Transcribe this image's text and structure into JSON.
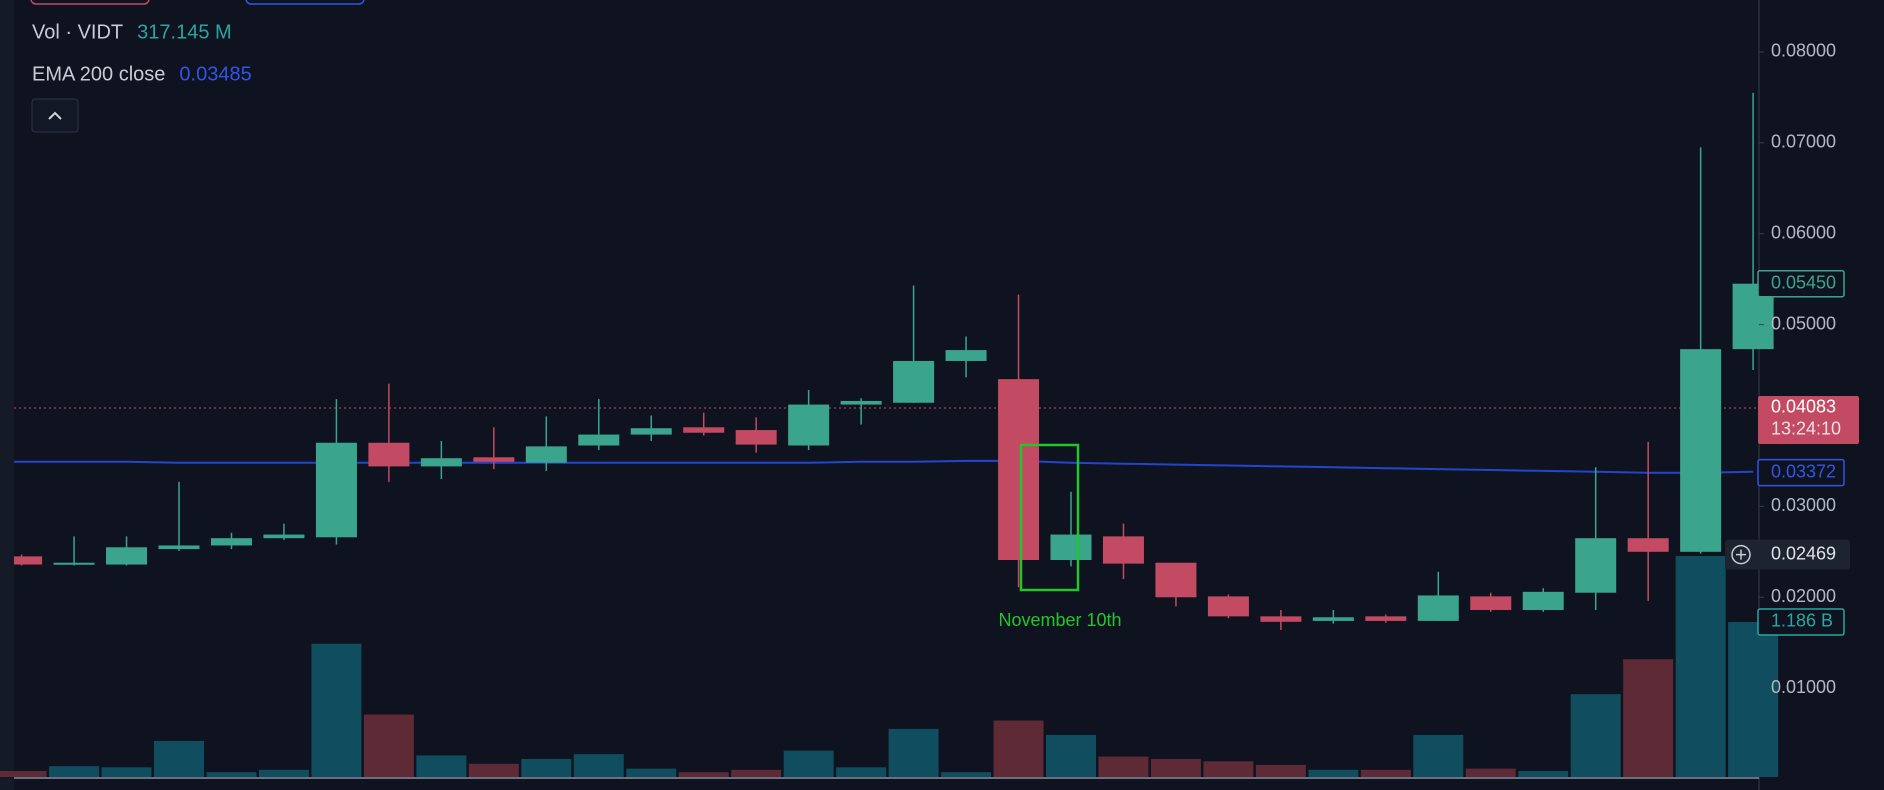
{
  "chart_data": {
    "type": "candlestick",
    "legend": [
      {
        "name": "Vol · VIDT",
        "value_label": "317.145 M",
        "color": "#2aa5a0"
      },
      {
        "name": "EMA 200 close",
        "value_label": "0.03485",
        "color": "#2f55e8"
      }
    ],
    "open": [
      0.0245,
      0.0236,
      0.0236,
      0.0253,
      0.0257,
      0.0265,
      0.0266,
      0.037,
      0.0344,
      0.0354,
      0.0348,
      0.0367,
      0.0379,
      0.0387,
      0.0384,
      0.0367,
      0.0412,
      0.0414,
      0.046,
      0.044,
      0.0241,
      0.0267,
      0.0238,
      0.0201,
      0.0179,
      0.0174,
      0.0179,
      0.0174,
      0.0201,
      0.0186,
      0.0205,
      0.0265,
      0.025,
      0.0473
    ],
    "high": [
      0.0247,
      0.0267,
      0.0267,
      0.0327,
      0.0271,
      0.0281,
      0.0418,
      0.0435,
      0.0372,
      0.0387,
      0.0399,
      0.0418,
      0.04,
      0.0403,
      0.0398,
      0.0428,
      0.0419,
      0.0543,
      0.0487,
      0.0533,
      0.0316,
      0.0281,
      0.0238,
      0.0203,
      0.0186,
      0.0186,
      0.0181,
      0.0228,
      0.0205,
      0.021,
      0.0343,
      0.0371,
      0.0695,
      0.0755
    ],
    "low": [
      0.0235,
      0.0235,
      0.0235,
      0.0251,
      0.0253,
      0.0263,
      0.0258,
      0.0327,
      0.033,
      0.0341,
      0.0339,
      0.0362,
      0.0372,
      0.0378,
      0.0359,
      0.0362,
      0.039,
      0.0414,
      0.0442,
      0.0211,
      0.0234,
      0.022,
      0.019,
      0.0177,
      0.0164,
      0.0171,
      0.0172,
      0.0174,
      0.0184,
      0.0184,
      0.0186,
      0.0196,
      0.0248,
      0.045
    ],
    "close": [
      0.0236,
      0.0238,
      0.0255,
      0.0257,
      0.0265,
      0.0269,
      0.037,
      0.0344,
      0.0353,
      0.0349,
      0.0366,
      0.0379,
      0.0386,
      0.0381,
      0.0368,
      0.0412,
      0.0416,
      0.046,
      0.0472,
      0.0241,
      0.0269,
      0.0237,
      0.02,
      0.0179,
      0.0173,
      0.0178,
      0.0174,
      0.0202,
      0.0186,
      0.0206,
      0.0265,
      0.025,
      0.0473,
      0.0545
    ],
    "volume": [
      46000000,
      83000000,
      74000000,
      276000000,
      37000000,
      55000000,
      1020000000,
      478000000,
      165000000,
      101000000,
      138000000,
      175000000,
      64000000,
      37000000,
      55000000,
      202000000,
      74000000,
      368000000,
      37000000,
      432000000,
      322000000,
      156000000,
      138000000,
      120000000,
      92000000,
      55000000,
      55000000,
      322000000,
      64000000,
      46000000,
      634000000,
      901000000,
      1691000000,
      1186000000
    ],
    "ema": [
      0.0349,
      0.0349,
      0.0349,
      0.0348,
      0.0348,
      0.0348,
      0.0348,
      0.0348,
      0.0348,
      0.0348,
      0.0348,
      0.0348,
      0.0348,
      0.0348,
      0.0348,
      0.0348,
      0.0349,
      0.0349,
      0.035,
      0.035,
      0.0348,
      0.0347,
      0.0346,
      0.0345,
      0.0344,
      0.0343,
      0.0342,
      0.0341,
      0.034,
      0.0339,
      0.0338,
      0.0337,
      0.0337,
      0.0338
    ],
    "up_color": "#3aa58c",
    "down_color": "#c24a62",
    "volume_up_color": "#0f4d5f",
    "volume_down_color": "#5e2a36",
    "ema_color": "#2444cc",
    "ylim": [
      0.0,
      0.08281
    ],
    "yticks": [
      {
        "value": 0.08,
        "label": "0.08000"
      },
      {
        "value": 0.07,
        "label": "0.07000"
      },
      {
        "value": 0.06,
        "label": "0.06000"
      },
      {
        "value": 0.05,
        "label": "0.05000"
      },
      {
        "value": 0.03,
        "label": "0.03000"
      },
      {
        "value": 0.02,
        "label": "0.02000"
      },
      {
        "value": 0.01,
        "label": "0.01000"
      }
    ],
    "last_price": {
      "value": 0.0545,
      "label": "0.05450",
      "color": "#3aa58c"
    },
    "current_price": {
      "value": 0.04083,
      "label": "0.04083",
      "countdown": "13:24:10",
      "color": "#c24a62"
    },
    "ema_price": {
      "value": 0.03372,
      "label": "0.03372",
      "color": "#2f55e8"
    },
    "crosshair_price": {
      "value": 0.02469,
      "label": "0.02469"
    },
    "volume_tag": {
      "value": 1186000000,
      "label": "1.186 B",
      "color": "#2aa5a0"
    },
    "annotation": "November 10th"
  }
}
